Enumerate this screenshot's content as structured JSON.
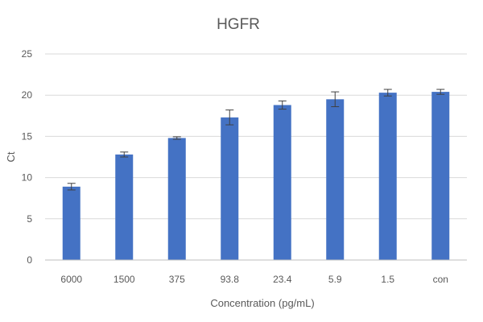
{
  "chart_data": {
    "type": "bar",
    "title": "HGFR",
    "xlabel": "Concentration (pg/mL)",
    "ylabel": "Ct",
    "categories": [
      "6000",
      "1500",
      "375",
      "93.8",
      "23.4",
      "5.9",
      "1.5",
      "con"
    ],
    "values": [
      8.9,
      12.8,
      14.8,
      17.3,
      18.8,
      19.5,
      20.3,
      20.4
    ],
    "errors": [
      0.4,
      0.3,
      0.15,
      0.9,
      0.5,
      0.9,
      0.4,
      0.3
    ],
    "ylim": [
      0,
      25
    ],
    "yticks": [
      "0",
      "5",
      "10",
      "15",
      "20",
      "25"
    ],
    "grid": true,
    "legend": "none",
    "bar_color": "#4472c4"
  }
}
